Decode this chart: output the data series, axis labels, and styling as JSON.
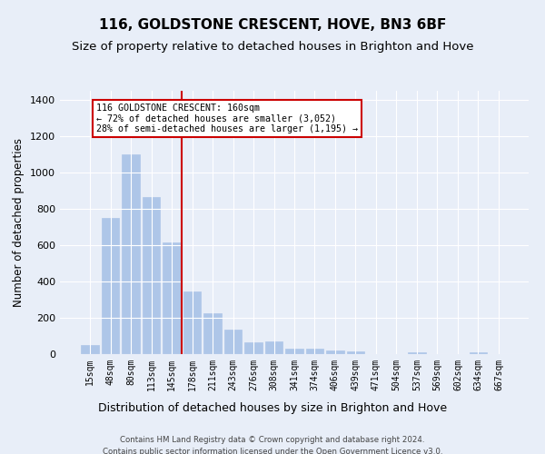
{
  "title": "116, GOLDSTONE CRESCENT, HOVE, BN3 6BF",
  "subtitle": "Size of property relative to detached houses in Brighton and Hove",
  "xlabel": "Distribution of detached houses by size in Brighton and Hove",
  "ylabel": "Number of detached properties",
  "footer_line1": "Contains HM Land Registry data © Crown copyright and database right 2024.",
  "footer_line2": "Contains public sector information licensed under the Open Government Licence v3.0.",
  "categories": [
    "15sqm",
    "48sqm",
    "80sqm",
    "113sqm",
    "145sqm",
    "178sqm",
    "211sqm",
    "243sqm",
    "276sqm",
    "308sqm",
    "341sqm",
    "374sqm",
    "406sqm",
    "439sqm",
    "471sqm",
    "504sqm",
    "537sqm",
    "569sqm",
    "602sqm",
    "634sqm",
    "667sqm"
  ],
  "values": [
    50,
    750,
    1100,
    865,
    615,
    345,
    225,
    135,
    65,
    70,
    30,
    30,
    22,
    15,
    0,
    0,
    12,
    0,
    0,
    10,
    0
  ],
  "bar_color": "#aec6e8",
  "bar_edge_color": "#aec6e8",
  "vline_x": 4.5,
  "vline_color": "#cc0000",
  "annotation_line1": "116 GOLDSTONE CRESCENT: 160sqm",
  "annotation_line2": "← 72% of detached houses are smaller (3,052)",
  "annotation_line3": "28% of semi-detached houses are larger (1,195) →",
  "annotation_box_color": "#cc0000",
  "annotation_box_fill": "#ffffff",
  "ylim": [
    0,
    1450
  ],
  "yticks": [
    0,
    200,
    400,
    600,
    800,
    1000,
    1200,
    1400
  ],
  "background_color": "#e8eef8",
  "plot_bg_color": "#e8eef8",
  "grid_color": "#ffffff",
  "title_fontsize": 11,
  "subtitle_fontsize": 9.5,
  "xlabel_fontsize": 9,
  "ylabel_fontsize": 8.5
}
